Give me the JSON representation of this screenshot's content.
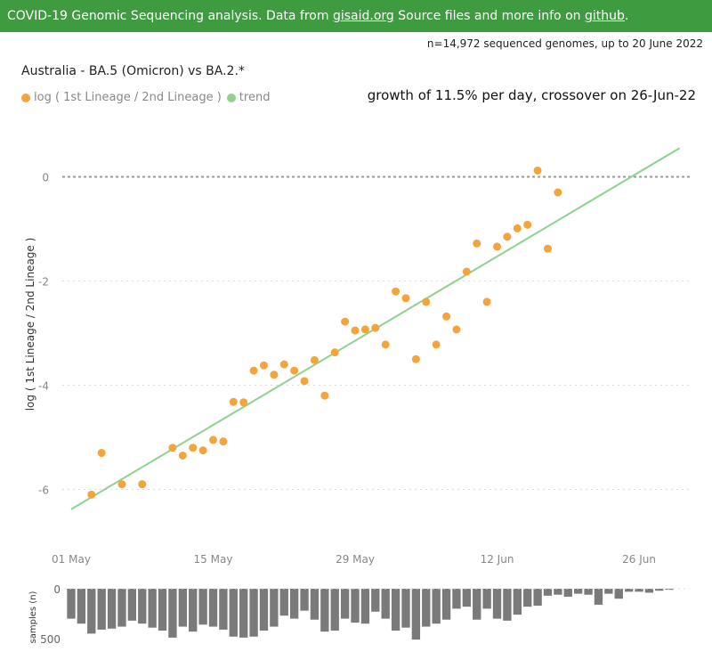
{
  "banner": {
    "prefix": "COVID-19 Genomic Sequencing analysis. Data from ",
    "link1": "gisaid.org",
    "middle": " Source files and more info on ",
    "link2": "github",
    "suffix": "."
  },
  "meta_text": "n=14,972 sequenced genomes, up to 20 June 2022",
  "colors": {
    "banner": "#3f9b3f",
    "points": "#f3a43a",
    "trend": "#8fd28f",
    "bars": "#7a7a7a",
    "zero_line": "#999999",
    "grid": "#dddddd"
  },
  "chart_data": [
    {
      "type": "scatter",
      "title": "Australia - BA.5 (Omicron) vs BA.2.*",
      "annotation": "growth of 11.5% per day, crossover on 26-Jun-22",
      "ylabel": "log ( 1st Lineage / 2nd Lineage )",
      "xlim": [
        "2022-05-01",
        "2022-07-01"
      ],
      "ylim": [
        -7.0,
        1.0
      ],
      "x_ticks": [
        "01 May",
        "15 May",
        "29 May",
        "12 Jun",
        "26 Jun"
      ],
      "x_tick_dates": [
        "2022-05-01",
        "2022-05-15",
        "2022-05-29",
        "2022-06-12",
        "2022-06-26"
      ],
      "y_ticks": [
        0,
        -2,
        -4,
        -6
      ],
      "grid": "horizontal dashed",
      "legend": "top-left",
      "series": [
        {
          "name": "log ( 1st Lineage / 2nd Lineage )",
          "x": [
            "2022-05-03",
            "2022-05-04",
            "2022-05-06",
            "2022-05-08",
            "2022-05-11",
            "2022-05-12",
            "2022-05-13",
            "2022-05-14",
            "2022-05-15",
            "2022-05-16",
            "2022-05-17",
            "2022-05-18",
            "2022-05-19",
            "2022-05-20",
            "2022-05-21",
            "2022-05-22",
            "2022-05-23",
            "2022-05-24",
            "2022-05-25",
            "2022-05-26",
            "2022-05-27",
            "2022-05-28",
            "2022-05-29",
            "2022-05-30",
            "2022-05-31",
            "2022-06-01",
            "2022-06-02",
            "2022-06-03",
            "2022-06-04",
            "2022-06-05",
            "2022-06-06",
            "2022-06-07",
            "2022-06-08",
            "2022-06-09",
            "2022-06-10",
            "2022-06-11",
            "2022-06-12",
            "2022-06-13",
            "2022-06-14",
            "2022-06-15",
            "2022-06-16",
            "2022-06-17",
            "2022-06-18",
            "2022-06-19",
            "2022-06-20"
          ],
          "y": [
            -6.1,
            -5.3,
            -5.9,
            -5.9,
            -5.2,
            -5.35,
            -5.2,
            -5.25,
            -5.05,
            -5.08,
            -4.32,
            -4.33,
            -3.72,
            -3.62,
            -3.8,
            -3.6,
            -3.72,
            -3.92,
            -3.52,
            -4.2,
            -3.37,
            -2.78,
            -2.95,
            -2.93,
            -2.9,
            -3.22,
            -2.2,
            -2.33,
            -3.5,
            -2.4,
            -3.22,
            -2.68,
            -2.93,
            -1.82,
            -1.28,
            -2.4,
            -1.34,
            -1.15,
            -0.99,
            -0.92,
            0.12,
            -1.38,
            -0.3,
            null,
            null
          ]
        },
        {
          "name": "trend",
          "x": [
            "2022-05-01",
            "2022-06-30"
          ],
          "y": [
            -6.38,
            0.55
          ]
        }
      ]
    },
    {
      "type": "bar",
      "ylabel": "samples (n)",
      "y_ticks": [
        0,
        500
      ],
      "ylim": [
        0,
        500
      ],
      "inverted": true,
      "x": [
        "2022-05-01",
        "2022-05-02",
        "2022-05-03",
        "2022-05-04",
        "2022-05-05",
        "2022-05-06",
        "2022-05-07",
        "2022-05-08",
        "2022-05-09",
        "2022-05-10",
        "2022-05-11",
        "2022-05-12",
        "2022-05-13",
        "2022-05-14",
        "2022-05-15",
        "2022-05-16",
        "2022-05-17",
        "2022-05-18",
        "2022-05-19",
        "2022-05-20",
        "2022-05-21",
        "2022-05-22",
        "2022-05-23",
        "2022-05-24",
        "2022-05-25",
        "2022-05-26",
        "2022-05-27",
        "2022-05-28",
        "2022-05-29",
        "2022-05-30",
        "2022-05-31",
        "2022-06-01",
        "2022-06-02",
        "2022-06-03",
        "2022-06-04",
        "2022-06-05",
        "2022-06-06",
        "2022-06-07",
        "2022-06-08",
        "2022-06-09",
        "2022-06-10",
        "2022-06-11",
        "2022-06-12",
        "2022-06-13",
        "2022-06-14",
        "2022-06-15",
        "2022-06-16",
        "2022-06-17",
        "2022-06-18",
        "2022-06-19",
        "2022-06-20",
        "2022-06-21",
        "2022-06-22",
        "2022-06-23",
        "2022-06-24",
        "2022-06-25",
        "2022-06-26",
        "2022-06-27",
        "2022-06-28",
        "2022-06-29"
      ],
      "values": [
        300,
        350,
        450,
        410,
        400,
        380,
        320,
        350,
        390,
        420,
        490,
        380,
        430,
        360,
        380,
        410,
        480,
        490,
        480,
        420,
        380,
        270,
        300,
        220,
        310,
        430,
        420,
        300,
        340,
        350,
        230,
        300,
        420,
        390,
        510,
        380,
        350,
        310,
        200,
        180,
        310,
        200,
        300,
        320,
        260,
        180,
        170,
        70,
        60,
        80,
        50,
        60,
        160,
        50,
        100,
        30,
        30,
        40,
        20,
        10
      ]
    }
  ]
}
